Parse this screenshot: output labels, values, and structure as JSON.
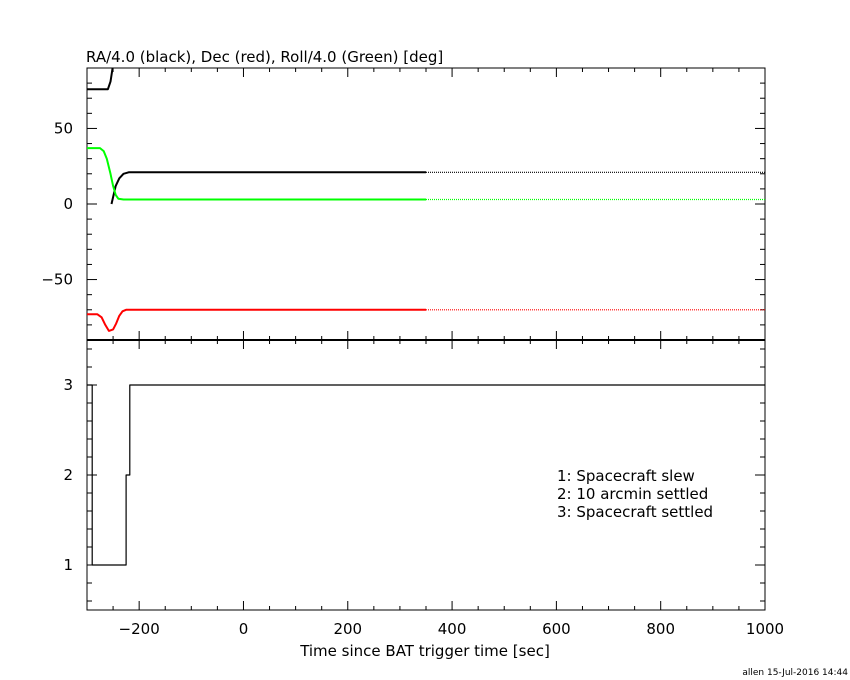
{
  "chart_data": [
    {
      "type": "line",
      "title": "RA/4.0 (black), Dec (red), Roll/4.0 (Green) [deg]",
      "xlim": [
        -300,
        1000
      ],
      "ylim": [
        -90,
        90
      ],
      "yticks": [
        -50,
        0,
        50
      ],
      "series": [
        {
          "color": "#000000",
          "x": [
            -300,
            -260,
            -255,
            -251
          ],
          "y": [
            76,
            76,
            81,
            90
          ]
        },
        {
          "color": "#000000",
          "x": [
            -253,
            -245,
            -238,
            -230,
            -220,
            -210,
            350
          ],
          "y": [
            0,
            12,
            17,
            20,
            21,
            21,
            21
          ]
        },
        {
          "color": "#000000",
          "dotted": true,
          "x": [
            350,
            1000
          ],
          "y": [
            21,
            21
          ]
        },
        {
          "color": "#00ff00",
          "x": [
            -300,
            -275,
            -268,
            -262,
            -255,
            -250,
            -245,
            -240,
            -230,
            -200,
            350
          ],
          "y": [
            37,
            37,
            35,
            30,
            20,
            12,
            6,
            3.5,
            3,
            3,
            3
          ]
        },
        {
          "color": "#00ff00",
          "dotted": true,
          "x": [
            350,
            1000
          ],
          "y": [
            3,
            3
          ]
        },
        {
          "color": "#ff0000",
          "x": [
            -300,
            -280,
            -272,
            -265,
            -258,
            -250,
            -244,
            -238,
            -232,
            -225,
            -220,
            350
          ],
          "y": [
            -73,
            -73,
            -75,
            -80,
            -84,
            -83,
            -79,
            -74,
            -71,
            -70,
            -70,
            -70
          ]
        },
        {
          "color": "#ff0000",
          "dotted": true,
          "x": [
            350,
            1000
          ],
          "y": [
            -70,
            -70
          ]
        }
      ]
    },
    {
      "type": "line",
      "xlabel": "Time since BAT trigger time [sec]",
      "xlim": [
        -300,
        1000
      ],
      "ylim": [
        0.5,
        3.5
      ],
      "xticks": [
        -200,
        0,
        200,
        400,
        600,
        800,
        1000
      ],
      "yticks": [
        1,
        2,
        3
      ],
      "series": [
        {
          "color": "#000000",
          "step": true,
          "x": [
            -300,
            -290,
            -225,
            -218,
            -213,
            1000
          ],
          "y": [
            3,
            1,
            2,
            3,
            3,
            3
          ]
        }
      ],
      "annotations": [
        "1: Spacecraft slew",
        "2: 10 arcmin settled",
        "3: Spacecraft settled"
      ]
    }
  ],
  "footer": "allen 15-Jul-2016 14:44"
}
